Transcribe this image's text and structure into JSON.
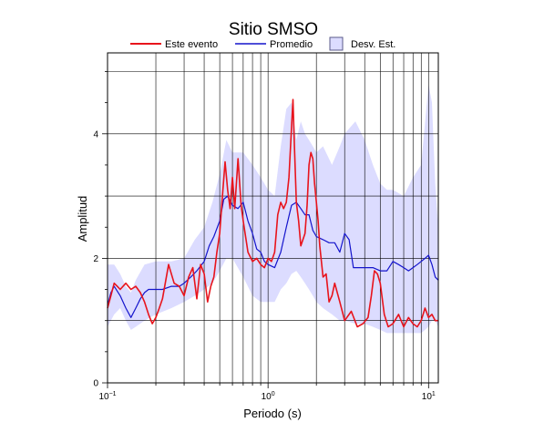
{
  "chart_data": {
    "type": "line",
    "title": "Sitio SMSO",
    "xlabel": "Periodo (s)",
    "ylabel": "Amplitud",
    "xscale": "log",
    "xlim": [
      0.1,
      11.5
    ],
    "ylim": [
      0,
      5.3
    ],
    "grid": true,
    "legend_position": "top",
    "x_tick_labels": [
      {
        "value": 0.1,
        "base": "10",
        "exp": "−1"
      },
      {
        "value": 1,
        "base": "10",
        "exp": "0"
      },
      {
        "value": 10,
        "base": "10",
        "exp": "1"
      }
    ],
    "y_ticks": [
      0,
      2,
      4
    ],
    "y_tick_labels": [
      "0",
      "2",
      "4"
    ],
    "legend": {
      "event_label": "Este evento",
      "mean_label": "Promedio",
      "band_label": "Desv. Est."
    },
    "colors": {
      "event": "#e8141c",
      "mean": "#1414cc",
      "band_fill": "#dcdcff",
      "band_stroke": "#5a5a8a"
    },
    "series": [
      {
        "name": "Este evento",
        "x": [
          0.1,
          0.105,
          0.11,
          0.115,
          0.12,
          0.13,
          0.14,
          0.15,
          0.16,
          0.17,
          0.18,
          0.19,
          0.2,
          0.21,
          0.22,
          0.24,
          0.26,
          0.28,
          0.3,
          0.32,
          0.34,
          0.36,
          0.38,
          0.4,
          0.42,
          0.44,
          0.46,
          0.48,
          0.5,
          0.52,
          0.54,
          0.56,
          0.58,
          0.6,
          0.62,
          0.65,
          0.68,
          0.7,
          0.75,
          0.8,
          0.85,
          0.9,
          0.95,
          1.0,
          1.05,
          1.1,
          1.15,
          1.2,
          1.25,
          1.3,
          1.35,
          1.4,
          1.43,
          1.46,
          1.5,
          1.55,
          1.6,
          1.7,
          1.75,
          1.8,
          1.85,
          1.9,
          1.95,
          2.0,
          2.05,
          2.1,
          2.2,
          2.3,
          2.4,
          2.5,
          2.6,
          2.8,
          3.0,
          3.3,
          3.6,
          3.9,
          4.2,
          4.4,
          4.6,
          4.8,
          5.0,
          5.3,
          5.6,
          6.0,
          6.5,
          7.0,
          7.5,
          8.0,
          8.5,
          9.0,
          9.5,
          10.0,
          10.5,
          11.0,
          11.5
        ],
        "y": [
          1.2,
          1.4,
          1.6,
          1.55,
          1.5,
          1.6,
          1.5,
          1.55,
          1.45,
          1.3,
          1.1,
          0.95,
          1.05,
          1.2,
          1.35,
          1.9,
          1.6,
          1.55,
          1.4,
          1.7,
          1.85,
          1.35,
          1.9,
          1.75,
          1.3,
          1.55,
          1.7,
          2.1,
          2.4,
          3.0,
          3.55,
          3.1,
          2.8,
          3.3,
          2.8,
          3.6,
          2.85,
          2.6,
          2.1,
          1.95,
          2.0,
          1.9,
          1.85,
          2.0,
          1.95,
          2.1,
          2.7,
          2.9,
          2.8,
          2.9,
          3.3,
          4.1,
          4.55,
          3.8,
          2.9,
          2.6,
          2.2,
          2.4,
          2.85,
          3.5,
          3.7,
          3.6,
          3.2,
          2.9,
          2.6,
          2.2,
          1.7,
          1.75,
          1.3,
          1.4,
          1.6,
          1.3,
          1.0,
          1.15,
          0.9,
          0.95,
          1.05,
          1.4,
          1.8,
          1.75,
          1.6,
          1.1,
          0.9,
          0.95,
          1.1,
          0.9,
          1.05,
          0.95,
          0.9,
          1.0,
          1.2,
          1.05,
          1.1,
          1.0,
          1.0
        ]
      },
      {
        "name": "Promedio",
        "x": [
          0.1,
          0.105,
          0.11,
          0.12,
          0.13,
          0.14,
          0.15,
          0.16,
          0.17,
          0.18,
          0.2,
          0.22,
          0.25,
          0.28,
          0.3,
          0.33,
          0.36,
          0.4,
          0.43,
          0.46,
          0.5,
          0.53,
          0.56,
          0.6,
          0.65,
          0.7,
          0.75,
          0.8,
          0.85,
          0.9,
          0.95,
          1.0,
          1.1,
          1.2,
          1.3,
          1.4,
          1.5,
          1.6,
          1.7,
          1.8,
          1.9,
          2.0,
          2.2,
          2.4,
          2.6,
          2.8,
          3.0,
          3.2,
          3.4,
          3.7,
          4.0,
          4.5,
          5.0,
          5.5,
          6.0,
          6.5,
          7.0,
          7.5,
          8.0,
          8.5,
          9.0,
          9.5,
          10.0,
          10.5,
          11.0,
          11.5
        ],
        "y": [
          1.25,
          1.45,
          1.55,
          1.4,
          1.2,
          1.05,
          1.2,
          1.35,
          1.45,
          1.5,
          1.5,
          1.5,
          1.55,
          1.55,
          1.6,
          1.7,
          1.8,
          1.95,
          2.2,
          2.35,
          2.6,
          2.95,
          3.0,
          2.85,
          2.8,
          2.9,
          2.6,
          2.4,
          2.15,
          2.1,
          1.95,
          1.9,
          1.85,
          2.1,
          2.5,
          2.85,
          2.9,
          2.8,
          2.7,
          2.7,
          2.45,
          2.35,
          2.3,
          2.25,
          2.25,
          2.1,
          2.4,
          2.3,
          1.85,
          1.85,
          1.85,
          1.85,
          1.8,
          1.8,
          1.95,
          1.9,
          1.85,
          1.8,
          1.85,
          1.9,
          1.95,
          2.0,
          2.05,
          1.9,
          1.7,
          1.65
        ]
      },
      {
        "name": "Desv. Est.",
        "x": [
          0.1,
          0.11,
          0.12,
          0.13,
          0.14,
          0.15,
          0.17,
          0.2,
          0.25,
          0.3,
          0.35,
          0.4,
          0.45,
          0.5,
          0.55,
          0.6,
          0.7,
          0.8,
          0.9,
          1.0,
          1.1,
          1.2,
          1.3,
          1.4,
          1.5,
          1.6,
          1.7,
          1.8,
          1.9,
          2.0,
          2.2,
          2.5,
          2.8,
          3.0,
          3.5,
          4.0,
          4.5,
          5.0,
          5.5,
          6.0,
          7.0,
          8.0,
          9.0,
          10.0,
          10.5,
          11.0,
          11.5
        ],
        "y_upper": [
          1.9,
          1.9,
          1.75,
          1.55,
          1.45,
          1.65,
          1.9,
          1.95,
          1.95,
          2.0,
          2.3,
          2.5,
          2.9,
          3.35,
          3.9,
          3.7,
          3.7,
          3.5,
          3.3,
          3.1,
          3.0,
          3.8,
          4.4,
          4.5,
          3.9,
          4.2,
          4.0,
          3.9,
          3.8,
          3.7,
          3.8,
          3.5,
          3.8,
          4.0,
          4.2,
          3.9,
          3.5,
          3.2,
          3.1,
          3.1,
          3.0,
          3.3,
          3.5,
          4.8,
          4.5,
          3.2,
          2.5
        ],
        "y_lower": [
          0.9,
          1.1,
          1.2,
          1.0,
          0.85,
          0.9,
          1.0,
          1.1,
          1.2,
          1.3,
          1.4,
          1.5,
          1.6,
          1.8,
          2.0,
          2.0,
          1.7,
          1.4,
          1.3,
          1.3,
          1.3,
          1.5,
          1.6,
          1.75,
          1.8,
          1.7,
          1.6,
          1.5,
          1.4,
          1.3,
          1.2,
          1.1,
          1.0,
          1.0,
          0.95,
          0.95,
          0.9,
          0.85,
          0.8,
          0.8,
          0.8,
          0.8,
          0.8,
          0.9,
          1.0,
          1.0,
          0.9
        ]
      }
    ]
  }
}
